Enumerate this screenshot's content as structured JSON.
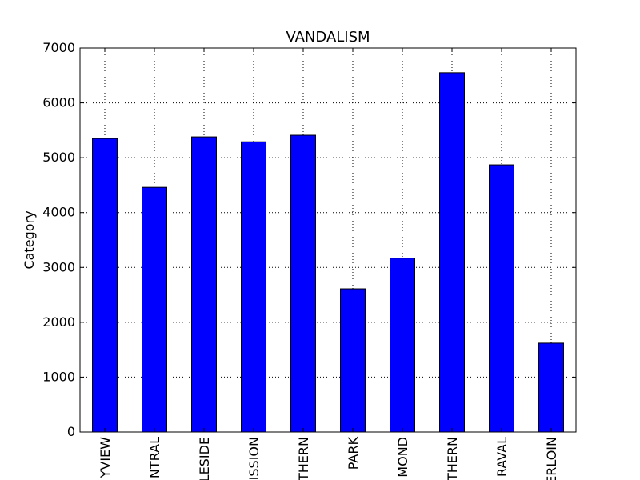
{
  "chart_data": {
    "type": "bar",
    "title": "VANDALISM",
    "xlabel": "",
    "ylabel": "Category",
    "categories": [
      "BAYVIEW",
      "CENTRAL",
      "INGLESIDE",
      "MISSION",
      "NORTHERN",
      "PARK",
      "RICHMOND",
      "SOUTHERN",
      "TARAVAL",
      "TENDERLOIN"
    ],
    "category_labels_visible": [
      "YVIEW",
      "NTRAL",
      "LESIDE",
      "ISSION",
      "THERN",
      "PARK",
      "MOND",
      "THERN",
      "RAVAL",
      "ERLOIN"
    ],
    "values": [
      5350,
      4460,
      5380,
      5290,
      5410,
      2610,
      3170,
      6550,
      4870,
      1620
    ],
    "ylim": [
      0,
      7000
    ],
    "yticks": [
      0,
      1000,
      2000,
      3000,
      4000,
      5000,
      6000,
      7000
    ],
    "grid": true,
    "bar_color": "#0000ff",
    "legend": "none"
  }
}
